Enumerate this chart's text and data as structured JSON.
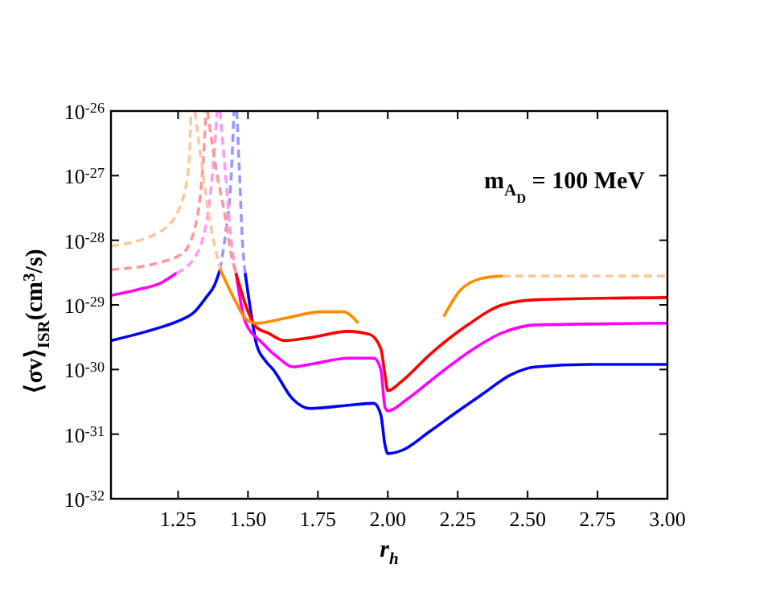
{
  "chart_data": {
    "type": "line",
    "xlabel": "r$_{h}$",
    "ylabel": "⟨σv⟩$_{ISR}$(cm$^{3}$/s)",
    "log": "y",
    "grid": false,
    "xlim": [
      1.01,
      3
    ],
    "xticks": [
      {
        "value": 1.25,
        "label": "1.25"
      },
      {
        "value": 1.5,
        "label": "1.50"
      },
      {
        "value": 1.75,
        "label": "1.75"
      },
      {
        "value": 2,
        "label": "2.00"
      },
      {
        "value": 2.25,
        "label": "2.25"
      },
      {
        "value": 2.5,
        "label": "2.50"
      },
      {
        "value": 2.75,
        "label": "2.75"
      },
      {
        "value": 3,
        "label": "3.00"
      }
    ],
    "ylim": [
      1e-32,
      1e-26
    ],
    "yticks": [
      {
        "value": 1e-32,
        "label": "10$^{-32}$"
      },
      {
        "value": 1e-31,
        "label": "10$^{-31}$"
      },
      {
        "value": 1e-30,
        "label": "10$^{-30}$"
      },
      {
        "value": 1e-29,
        "label": "10$^{-29}$"
      },
      {
        "value": 1e-28,
        "label": "10$^{-28}$"
      },
      {
        "value": 1e-27,
        "label": "10$^{-27}$"
      },
      {
        "value": 1e-26,
        "label": "10$^{-26}$"
      }
    ],
    "annotations": [
      "m$_{A}$$_{D}$ = 100 MeV"
    ],
    "series": [
      {
        "color": "#9999ff",
        "line_style": "dashed",
        "x": [
          1.4,
          1.42,
          1.44,
          1.45
        ],
        "values": [
          3.5e-29,
          1.3e-28,
          1e-27,
          1e-26
        ]
      },
      {
        "color": "#9999ff",
        "line_style": "dashed",
        "x": [
          1.46,
          1.47,
          1.48,
          1.49
        ],
        "values": [
          1e-26,
          1e-27,
          1e-28,
          3.1e-29
        ]
      },
      {
        "color": "#ff99ff",
        "line_style": "dashed",
        "x": [
          1.244,
          1.32,
          1.37,
          1.39
        ],
        "values": [
          3.1e-29,
          6.5e-29,
          7.9e-28,
          1e-26
        ]
      },
      {
        "color": "#ff99ff",
        "line_style": "dashed",
        "x": [
          1.4,
          1.42,
          1.44,
          1.457
        ],
        "values": [
          1e-26,
          1e-27,
          1e-28,
          3.1e-29
        ]
      },
      {
        "color": "#ff9999",
        "line_style": "dashed",
        "x": [
          1.01,
          1.19,
          1.27,
          1.32,
          1.34,
          1.35
        ],
        "values": [
          3.5e-29,
          4.6e-29,
          6.5e-29,
          2.5e-28,
          1.7e-27,
          1e-26
        ]
      },
      {
        "color": "#ff9999",
        "line_style": "dashed",
        "x": [
          1.355,
          1.39,
          1.417,
          1.44,
          1.457
        ],
        "values": [
          1e-26,
          1e-27,
          2.5e-28,
          6e-29,
          3.1e-29
        ]
      },
      {
        "color": "#ffc899",
        "line_style": "dashed",
        "x": [
          1.01,
          1.19,
          1.26,
          1.29,
          1.296
        ],
        "values": [
          8.1e-29,
          1.4e-28,
          3.6e-28,
          1.7e-27,
          1e-26
        ]
      },
      {
        "color": "#ffc899",
        "line_style": "dashed",
        "x": [
          1.31,
          1.34,
          1.36,
          1.4
        ],
        "values": [
          1e-26,
          1e-27,
          2.5e-28,
          3.6e-29
        ]
      },
      {
        "color": "#ffc899",
        "line_style": "dashed",
        "x": [
          2.41,
          3.0
        ],
        "values": [
          2.8e-29,
          2.8e-29
        ]
      },
      {
        "color": "#0000ff",
        "line_style": "solid",
        "x": [
          1.01,
          1.1,
          1.18,
          1.25,
          1.31,
          1.35,
          1.38,
          1.4
        ],
        "values": [
          2.8e-30,
          3.5e-30,
          4.4e-30,
          5.6e-30,
          7.9e-30,
          1.3e-29,
          2e-29,
          3.5e-29
        ]
      },
      {
        "color": "#0000ff",
        "line_style": "solid",
        "x": [
          1.49,
          1.51,
          1.53,
          1.56,
          1.59,
          1.66,
          1.72,
          1.86,
          1.95,
          1.975,
          1.99,
          2.0,
          2.05,
          2.15,
          2.24,
          2.34,
          2.44,
          2.53,
          2.72,
          3.0
        ],
        "values": [
          3.1e-29,
          7.9e-30,
          2.5e-30,
          1.4e-30,
          1e-30,
          3.5e-31,
          2.5e-31,
          2.8e-31,
          3e-31,
          2e-31,
          6.8e-32,
          5e-32,
          5.6e-32,
          1.1e-31,
          2.1e-31,
          4.2e-31,
          8.3e-31,
          1.1e-30,
          1.2e-30,
          1.2e-30
        ]
      },
      {
        "color": "#ff00ff",
        "line_style": "solid",
        "x": [
          1.01,
          1.1,
          1.19,
          1.244
        ],
        "values": [
          1.4e-29,
          1.7e-29,
          2.2e-29,
          3.1e-29
        ]
      },
      {
        "color": "#ff00ff",
        "line_style": "solid",
        "x": [
          1.457,
          1.49,
          1.55,
          1.61,
          1.66,
          1.72,
          1.86,
          1.95,
          1.975,
          1.99,
          2.0,
          2.07,
          2.18,
          2.3,
          2.41,
          2.53,
          3.0
        ],
        "values": [
          3.1e-29,
          5.5e-30,
          2.6e-30,
          1.5e-30,
          1.1e-30,
          1.2e-30,
          1.5e-30,
          1.5e-30,
          1e-30,
          2.6e-31,
          2.3e-31,
          3.5e-31,
          8.3e-31,
          2e-30,
          3.7e-30,
          4.9e-30,
          5.2e-30
        ]
      },
      {
        "color": "#ff0000",
        "line_style": "solid",
        "x": [
          1.457,
          1.5,
          1.53,
          1.57,
          1.63,
          1.72,
          1.86,
          1.935,
          1.975,
          1.99,
          2.0,
          2.05,
          2.15,
          2.28,
          2.41,
          2.53,
          3.0
        ],
        "values": [
          3.1e-29,
          7.9e-30,
          4.5e-30,
          3.7e-30,
          2.8e-30,
          3.1e-30,
          3.9e-30,
          3.5e-30,
          2.1e-30,
          8.3e-31,
          4.7e-31,
          6.6e-31,
          1.7e-30,
          4.7e-30,
          1e-29,
          1.2e-29,
          1.3e-29
        ]
      },
      {
        "color": "#ff8c00",
        "line_style": "solid",
        "x": [
          1.4,
          1.457,
          1.49,
          1.53,
          1.63,
          1.76,
          1.84,
          1.895
        ],
        "values": [
          3.6e-29,
          1.1e-29,
          6.2e-30,
          5.2e-30,
          6.2e-30,
          7.8e-30,
          7.8e-30,
          5.2e-30
        ]
      },
      {
        "color": "#ff8c00",
        "line_style": "solid",
        "x": [
          2.2,
          2.26,
          2.34,
          2.41
        ],
        "values": [
          6.6e-30,
          1.7e-29,
          2.6e-29,
          2.8e-29
        ]
      }
    ]
  }
}
